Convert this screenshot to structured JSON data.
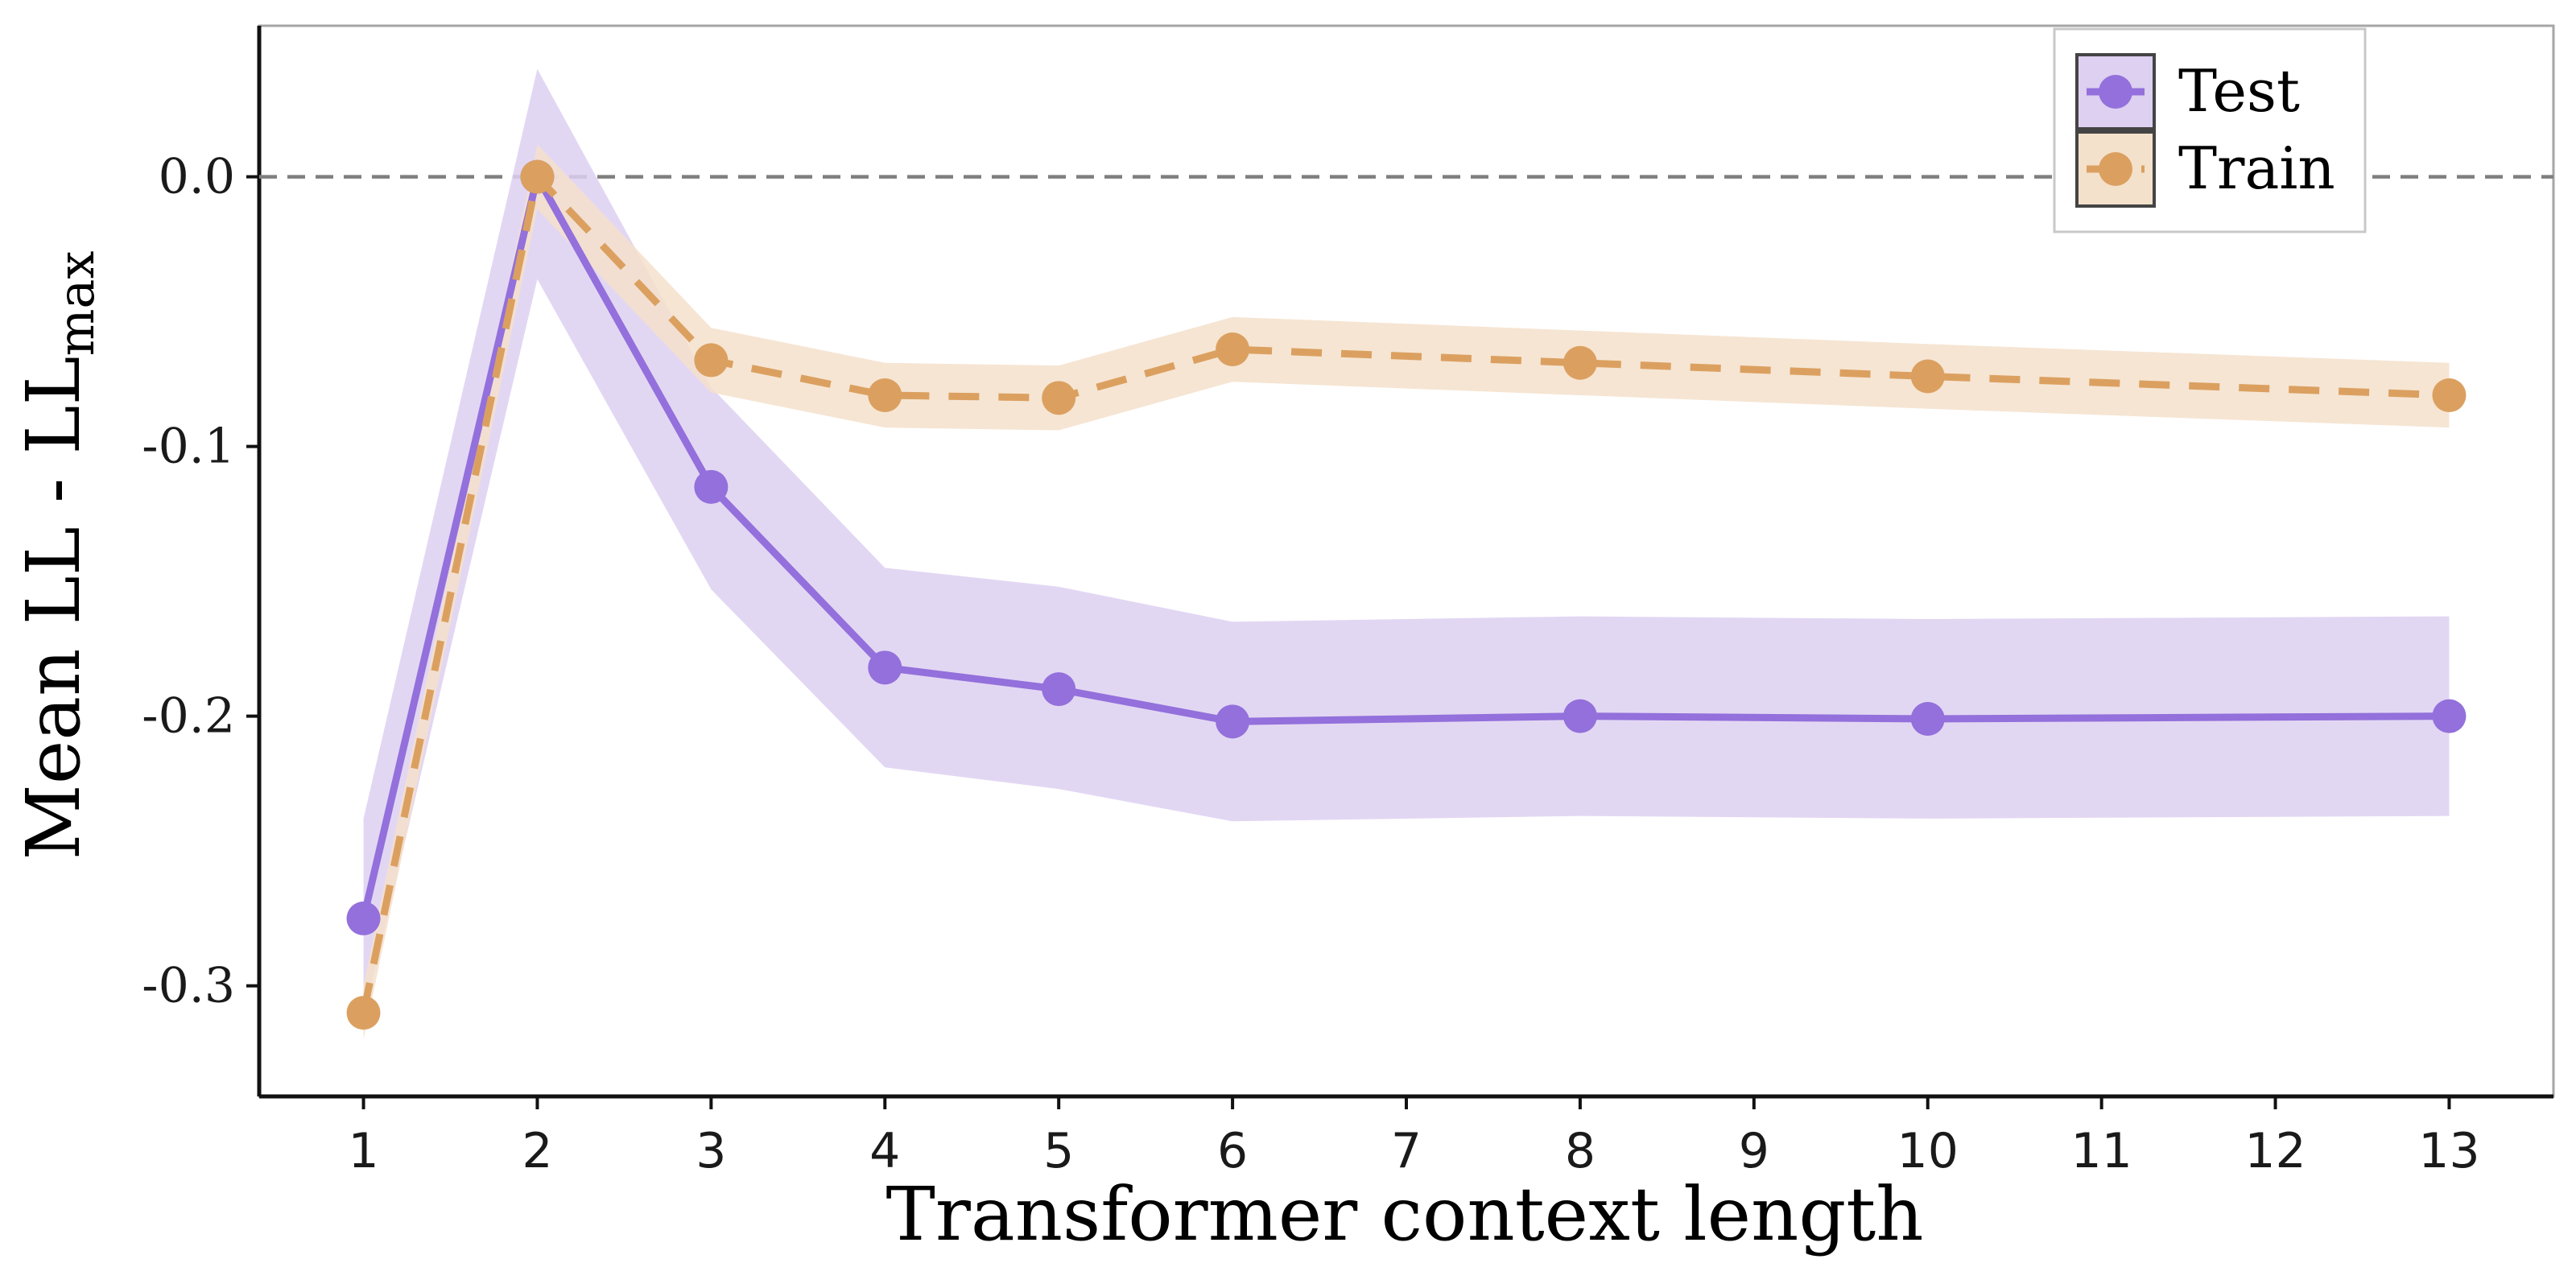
{
  "chart_data": {
    "type": "line",
    "xlabel": "Transformer context length",
    "ylabel_main": "Mean LL - LL",
    "ylabel_sub": "max",
    "x_ticks": [
      "1",
      "2",
      "3",
      "4",
      "5",
      "6",
      "7",
      "8",
      "9",
      "10",
      "11",
      "12",
      "13"
    ],
    "y_ticks": [
      "0.0",
      "-0.1",
      "-0.2",
      "-0.3"
    ],
    "y_tick_values": [
      0.0,
      -0.1,
      -0.2,
      -0.3
    ],
    "xlim": [
      0.4,
      13.6
    ],
    "ylim": [
      -0.341,
      0.056
    ],
    "reference_line": 0.0,
    "grid": false,
    "legend_position": "top-right",
    "series": [
      {
        "name": "Test",
        "color": "#9370db",
        "band_color": "#ddd0f1",
        "line_style": "solid",
        "x": [
          1,
          2,
          3,
          4,
          5,
          6,
          8,
          10,
          13
        ],
        "y": [
          -0.275,
          0.0,
          -0.115,
          -0.182,
          -0.19,
          -0.202,
          -0.2,
          -0.201,
          -0.2
        ],
        "band_upper": [
          -0.238,
          0.04,
          -0.078,
          -0.145,
          -0.152,
          -0.165,
          -0.163,
          -0.164,
          -0.163
        ],
        "band_lower": [
          -0.312,
          -0.038,
          -0.153,
          -0.219,
          -0.227,
          -0.239,
          -0.237,
          -0.238,
          -0.237
        ]
      },
      {
        "name": "Train",
        "color": "#dba060",
        "band_color": "#f4e1cb",
        "line_style": "dashed",
        "x": [
          1,
          2,
          3,
          4,
          5,
          6,
          8,
          10,
          13
        ],
        "y": [
          -0.31,
          0.0,
          -0.068,
          -0.081,
          -0.082,
          -0.064,
          -0.069,
          -0.074,
          -0.081
        ],
        "band_upper": [
          -0.3,
          0.012,
          -0.056,
          -0.069,
          -0.07,
          -0.052,
          -0.057,
          -0.062,
          -0.069
        ],
        "band_lower": [
          -0.32,
          -0.012,
          -0.08,
          -0.093,
          -0.094,
          -0.076,
          -0.081,
          -0.086,
          -0.093
        ]
      }
    ]
  }
}
